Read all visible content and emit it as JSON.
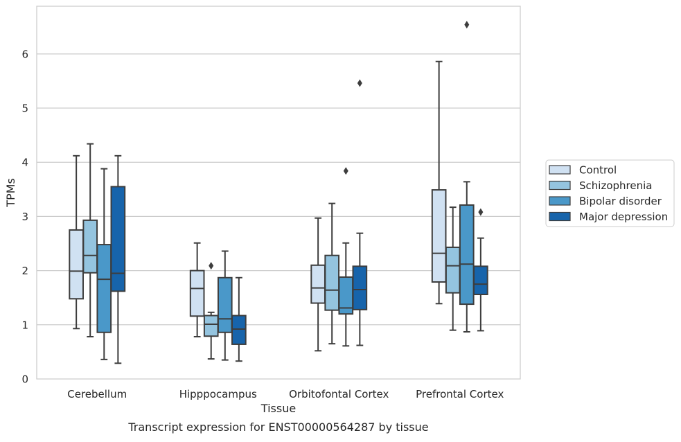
{
  "chart_data": {
    "type": "box",
    "title": "",
    "caption": "Transcript expression for ENST00000564287 by tissue",
    "xlabel": "Tissue",
    "ylabel": "TPMs",
    "ylim": [
      0,
      6.88
    ],
    "yticks": [
      "0",
      "1",
      "2",
      "3",
      "4",
      "5",
      "6"
    ],
    "grid": "horizontal",
    "legend_position": "right, outside plot",
    "categories": [
      "Cerebellum",
      "Hipppocampus",
      "Orbitofontal Cortex",
      "Prefrontal Cortex"
    ],
    "series": [
      {
        "name": "Control",
        "color": "#d0e1f2",
        "boxes": [
          {
            "whisker_low": 0.93,
            "q1": 1.48,
            "median": 1.99,
            "q3": 2.75,
            "whisker_high": 4.12,
            "outliers": []
          },
          {
            "whisker_low": 0.78,
            "q1": 1.16,
            "median": 1.67,
            "q3": 2.0,
            "whisker_high": 2.51,
            "outliers": []
          },
          {
            "whisker_low": 0.52,
            "q1": 1.4,
            "median": 1.68,
            "q3": 2.1,
            "whisker_high": 2.97,
            "outliers": []
          },
          {
            "whisker_low": 1.39,
            "q1": 1.79,
            "median": 2.32,
            "q3": 3.49,
            "whisker_high": 5.86,
            "outliers": []
          }
        ]
      },
      {
        "name": "Schizophrenia",
        "color": "#94c4df",
        "boxes": [
          {
            "whisker_low": 0.78,
            "q1": 1.96,
            "median": 2.28,
            "q3": 2.93,
            "whisker_high": 4.34,
            "outliers": []
          },
          {
            "whisker_low": 0.37,
            "q1": 0.79,
            "median": 1.01,
            "q3": 1.17,
            "whisker_high": 1.23,
            "outliers": [
              2.09
            ]
          },
          {
            "whisker_low": 0.65,
            "q1": 1.27,
            "median": 1.64,
            "q3": 2.28,
            "whisker_high": 3.24,
            "outliers": []
          },
          {
            "whisker_low": 0.9,
            "q1": 1.59,
            "median": 2.09,
            "q3": 2.43,
            "whisker_high": 3.17,
            "outliers": []
          }
        ]
      },
      {
        "name": "Bipolar disorder",
        "color": "#4a98c9",
        "boxes": [
          {
            "whisker_low": 0.36,
            "q1": 0.86,
            "median": 1.84,
            "q3": 2.48,
            "whisker_high": 3.88,
            "outliers": []
          },
          {
            "whisker_low": 0.35,
            "q1": 0.86,
            "median": 1.11,
            "q3": 1.87,
            "whisker_high": 2.36,
            "outliers": []
          },
          {
            "whisker_low": 0.61,
            "q1": 1.2,
            "median": 1.31,
            "q3": 1.88,
            "whisker_high": 2.51,
            "outliers": [
              3.84
            ]
          },
          {
            "whisker_low": 0.87,
            "q1": 1.38,
            "median": 2.12,
            "q3": 3.21,
            "whisker_high": 3.64,
            "outliers": [
              6.54
            ]
          }
        ]
      },
      {
        "name": "Major depression",
        "color": "#1764ab",
        "boxes": [
          {
            "whisker_low": 0.29,
            "q1": 1.62,
            "median": 1.95,
            "q3": 3.55,
            "whisker_high": 4.12,
            "outliers": []
          },
          {
            "whisker_low": 0.33,
            "q1": 0.64,
            "median": 0.92,
            "q3": 1.17,
            "whisker_high": 1.87,
            "outliers": []
          },
          {
            "whisker_low": 0.62,
            "q1": 1.28,
            "median": 1.65,
            "q3": 2.08,
            "whisker_high": 2.69,
            "outliers": [
              5.46
            ]
          },
          {
            "whisker_low": 0.89,
            "q1": 1.56,
            "median": 1.75,
            "q3": 2.08,
            "whisker_high": 2.6,
            "outliers": [
              3.08
            ]
          }
        ]
      }
    ]
  }
}
